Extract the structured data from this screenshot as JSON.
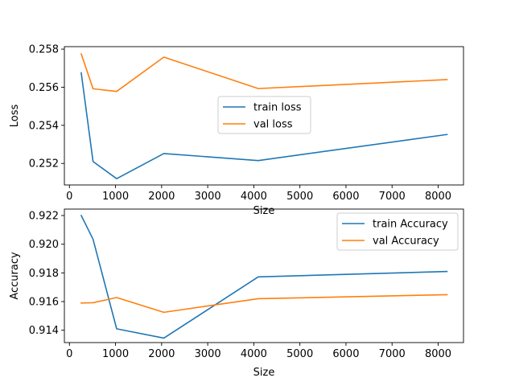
{
  "chart_data": [
    {
      "type": "line",
      "title": "",
      "xlabel": "Size",
      "ylabel": "Loss",
      "xlim": [
        -110,
        8550
      ],
      "ylim": [
        0.25087,
        0.25813
      ],
      "xticks": [
        0,
        1000,
        2000,
        3000,
        4000,
        5000,
        6000,
        7000,
        8000
      ],
      "yticks": [
        0.252,
        0.254,
        0.256,
        0.258
      ],
      "grid": false,
      "legend_position": "center",
      "series": [
        {
          "name": "train loss",
          "color": "#1f77b4",
          "x": [
            256,
            512,
            1024,
            2048,
            4096,
            8192
          ],
          "y": [
            0.25675,
            0.2521,
            0.2512,
            0.25252,
            0.25215,
            0.25352
          ]
        },
        {
          "name": "val loss",
          "color": "#ff7f0e",
          "x": [
            256,
            512,
            1024,
            2048,
            4096,
            8192
          ],
          "y": [
            0.25775,
            0.25592,
            0.25578,
            0.25758,
            0.25593,
            0.2564
          ]
        }
      ]
    },
    {
      "type": "line",
      "title": "",
      "xlabel": "Size",
      "ylabel": "Accuracy",
      "xlim": [
        -110,
        8550
      ],
      "ylim": [
        0.91314,
        0.92245
      ],
      "xticks": [
        0,
        1000,
        2000,
        3000,
        4000,
        5000,
        6000,
        7000,
        8000
      ],
      "yticks": [
        0.914,
        0.916,
        0.918,
        0.92,
        0.922
      ],
      "grid": false,
      "legend_position": "top-right",
      "series": [
        {
          "name": "train Accuracy",
          "color": "#1f77b4",
          "x": [
            256,
            512,
            1024,
            2048,
            4096,
            8192
          ],
          "y": [
            0.922,
            0.92035,
            0.9141,
            0.91345,
            0.91772,
            0.9181
          ]
        },
        {
          "name": "val Accuracy",
          "color": "#ff7f0e",
          "x": [
            256,
            512,
            1024,
            2048,
            4096,
            8192
          ],
          "y": [
            0.9159,
            0.91592,
            0.91628,
            0.91525,
            0.9162,
            0.91648
          ]
        }
      ]
    }
  ]
}
